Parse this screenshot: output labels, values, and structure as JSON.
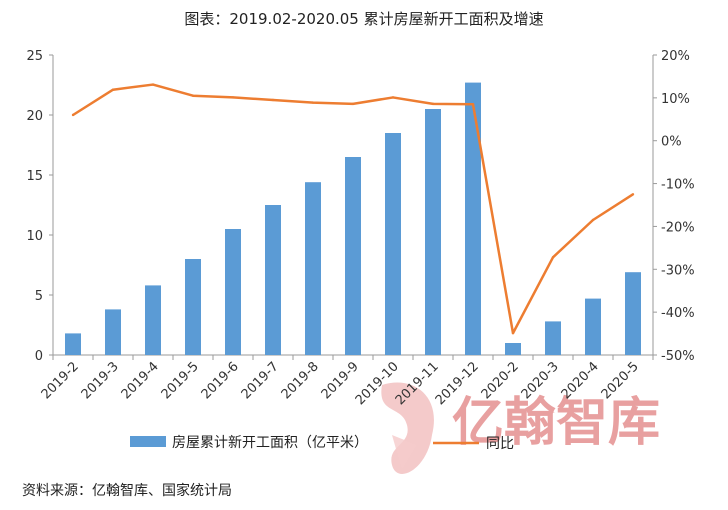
{
  "page": {
    "source_note": "资料来源：亿翰智库、国家统计局",
    "watermark": "亿翰智库"
  },
  "chart_data": {
    "type": "bar",
    "title": "图表：2019.02-2020.05 累计房屋新开工面积及增速",
    "categories": [
      "2019-2",
      "2019-3",
      "2019-4",
      "2019-5",
      "2019-6",
      "2019-7",
      "2019-8",
      "2019-9",
      "2019-10",
      "2019-11",
      "2019-12",
      "2020-2",
      "2020-3",
      "2020-4",
      "2020-5"
    ],
    "series": [
      {
        "name": "房屋累计新开工面积（亿平米）",
        "kind": "bar",
        "axis": "left",
        "color": "#5b9bd5",
        "values": [
          1.8,
          3.8,
          5.8,
          8.0,
          10.5,
          12.5,
          14.4,
          16.5,
          18.5,
          20.5,
          22.7,
          1.0,
          2.8,
          4.7,
          6.9
        ]
      },
      {
        "name": "同比",
        "kind": "line",
        "axis": "right",
        "color": "#ed7d31",
        "values": [
          6.0,
          11.9,
          13.1,
          10.5,
          10.1,
          9.5,
          8.9,
          8.6,
          10.1,
          8.6,
          8.5,
          -44.9,
          -27.2,
          -18.5,
          -12.5
        ]
      }
    ],
    "ylim_left": [
      0,
      25
    ],
    "yticks_left": [
      "0",
      "5",
      "10",
      "15",
      "20",
      "25"
    ],
    "ylim_right": [
      -50,
      20
    ],
    "yticks_right": [
      "20%",
      "10%",
      "0%",
      "-10%",
      "-20%",
      "-30%",
      "-40%",
      "-50%"
    ],
    "legend_position": "bottom",
    "grid": false
  }
}
